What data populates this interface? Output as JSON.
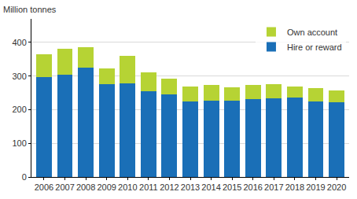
{
  "chart_data": {
    "type": "bar",
    "stacked": true,
    "ylabel": "Million tonnes",
    "categories": [
      "2006",
      "2007",
      "2008",
      "2009",
      "2010",
      "2011",
      "2012",
      "2013",
      "2014",
      "2015",
      "2016",
      "2017",
      "2018",
      "2019",
      "2020"
    ],
    "series": [
      {
        "name": "Hire or reward",
        "color": "#1a6fb7",
        "values": [
          298,
          305,
          325,
          275,
          279,
          254,
          245,
          224,
          227,
          227,
          231,
          234,
          236,
          225,
          222
        ]
      },
      {
        "name": "Own account",
        "color": "#b6d334",
        "values": [
          67,
          76,
          62,
          48,
          81,
          58,
          48,
          44,
          46,
          39,
          43,
          43,
          34,
          40,
          36
        ]
      }
    ],
    "ylim": [
      0,
      470
    ],
    "yticks": [
      0,
      100,
      200,
      300,
      400
    ],
    "grid": true,
    "legend": "upper right"
  }
}
